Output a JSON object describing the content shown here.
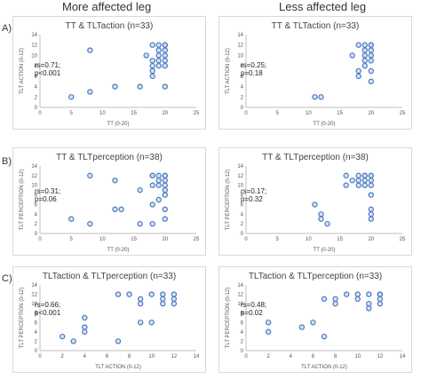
{
  "column_headers": [
    "More affected leg",
    "Less affected leg"
  ],
  "row_labels": [
    "A)",
    "B)",
    "C)"
  ],
  "chart_data": [
    {
      "type": "scatter",
      "row": 0,
      "col": 0,
      "title": "TT & TLTaction (n=33)",
      "xlabel": "TT (0-20)",
      "ylabel": "TLT ACTION (0-12)",
      "xlim": [
        0,
        25
      ],
      "ylim": [
        0,
        14
      ],
      "xticks": [
        0,
        5,
        10,
        15,
        20,
        25
      ],
      "yticks": [
        0,
        2,
        4,
        6,
        8,
        10,
        12,
        14
      ],
      "stat": [
        "rs=0.71;",
        "p<0.001"
      ],
      "x": [
        5,
        8,
        8,
        12,
        16,
        17,
        18,
        18,
        18,
        18,
        18,
        19,
        19,
        19,
        19,
        19,
        20,
        20,
        20,
        20,
        20,
        20,
        20
      ],
      "y": [
        2,
        3,
        11,
        4,
        4,
        10,
        12,
        9,
        8,
        7,
        6,
        12,
        11,
        10,
        9,
        8,
        12,
        12,
        11,
        10,
        9,
        8,
        4
      ]
    },
    {
      "type": "scatter",
      "row": 0,
      "col": 1,
      "title": "TT & TLTaction (n=33)",
      "xlabel": "TT (0-20)",
      "ylabel": "TLT ACTION (0-12)",
      "xlim": [
        0,
        25
      ],
      "ylim": [
        0,
        14
      ],
      "xticks": [
        0,
        5,
        10,
        15,
        20,
        25
      ],
      "yticks": [
        0,
        2,
        4,
        6,
        8,
        10,
        12,
        14
      ],
      "stat": [
        "rs=0.25;",
        "p=0.18"
      ],
      "x": [
        11,
        12,
        17,
        18,
        18,
        18,
        19,
        19,
        19,
        19,
        19,
        20,
        20,
        20,
        20,
        20,
        20,
        20
      ],
      "y": [
        2,
        2,
        10,
        12,
        7,
        6,
        12,
        11,
        10,
        9,
        8,
        12,
        12,
        11,
        10,
        9,
        7,
        5
      ]
    },
    {
      "type": "scatter",
      "row": 1,
      "col": 0,
      "title": "TT & TLTperception (n=38)",
      "xlabel": "TT (0-20)",
      "ylabel": "TLT PERCEPTION (0-12)",
      "xlim": [
        0,
        25
      ],
      "ylim": [
        0,
        14
      ],
      "xticks": [
        0,
        5,
        10,
        15,
        20,
        25
      ],
      "yticks": [
        0,
        2,
        4,
        6,
        8,
        10,
        12,
        14
      ],
      "stat": [
        "rs=0.31;",
        "p=0.06"
      ],
      "x": [
        5,
        8,
        8,
        12,
        12,
        13,
        16,
        16,
        18,
        18,
        18,
        18,
        18,
        19,
        19,
        19,
        19,
        20,
        20,
        20,
        20,
        20,
        20,
        20,
        20
      ],
      "y": [
        3,
        2,
        12,
        11,
        5,
        5,
        9,
        2,
        12,
        12,
        10,
        6,
        2,
        12,
        11,
        10,
        7,
        12,
        12,
        11,
        10,
        9,
        8,
        5,
        3
      ]
    },
    {
      "type": "scatter",
      "row": 1,
      "col": 1,
      "title": "TT & TLTperception (n=38)",
      "xlabel": "TT (0-20)",
      "ylabel": "TLT PERCEPTION (0-12)",
      "xlim": [
        0,
        25
      ],
      "ylim": [
        0,
        14
      ],
      "xticks": [
        0,
        5,
        10,
        15,
        20,
        25
      ],
      "yticks": [
        0,
        2,
        4,
        6,
        8,
        10,
        12,
        14
      ],
      "stat": [
        "rs=0.17;",
        "p=0.32"
      ],
      "x": [
        11,
        12,
        12,
        13,
        16,
        16,
        17,
        18,
        18,
        18,
        19,
        19,
        19,
        19,
        20,
        20,
        20,
        20,
        20,
        20,
        20,
        20
      ],
      "y": [
        6,
        4,
        3,
        2,
        12,
        10,
        11,
        12,
        11,
        10,
        12,
        12,
        11,
        10,
        12,
        12,
        11,
        10,
        8,
        5,
        4,
        3
      ]
    },
    {
      "type": "scatter",
      "row": 2,
      "col": 0,
      "title": "TLTaction & TLTperception (n=33)",
      "xlabel": "TLT ACTION (0-12)",
      "ylabel": "TLT PERCEPTION (0-12)",
      "xlim": [
        0,
        14
      ],
      "ylim": [
        0,
        14
      ],
      "xticks": [
        0,
        2,
        4,
        6,
        8,
        10,
        12,
        14
      ],
      "yticks": [
        0,
        2,
        4,
        6,
        8,
        10,
        12,
        14
      ],
      "stat": [
        "rs=0.66;",
        "p<0.001"
      ],
      "x": [
        2,
        3,
        4,
        4,
        4,
        7,
        7,
        8,
        9,
        9,
        9,
        10,
        10,
        11,
        11,
        11,
        12,
        12,
        12
      ],
      "y": [
        3,
        2,
        4,
        5,
        7,
        2,
        12,
        12,
        11,
        10,
        6,
        12,
        6,
        12,
        11,
        10,
        12,
        11,
        10
      ]
    },
    {
      "type": "scatter",
      "row": 2,
      "col": 1,
      "title": "TLTaction & TLTperception (n=33)",
      "xlabel": "TLT ACTION (0-12)",
      "ylabel": "TLT PERCEPTION (0-12)",
      "xlim": [
        0,
        14
      ],
      "ylim": [
        0,
        14
      ],
      "xticks": [
        0,
        2,
        4,
        6,
        8,
        10,
        12,
        14
      ],
      "yticks": [
        0,
        2,
        4,
        6,
        8,
        10,
        12,
        14
      ],
      "stat": [
        "rs=0.48;",
        "p=0.02"
      ],
      "x": [
        2,
        2,
        5,
        6,
        7,
        7,
        8,
        8,
        9,
        10,
        10,
        11,
        11,
        11,
        12,
        12,
        12,
        12
      ],
      "y": [
        6,
        4,
        5,
        6,
        3,
        11,
        10,
        11,
        12,
        12,
        11,
        12,
        10,
        9,
        12,
        12,
        11,
        10
      ]
    }
  ],
  "style": {
    "marker_stroke": "#4a78c2",
    "marker_fill": "#c9d8ee",
    "axis_color": "#bfbfbf",
    "tick_color": "#555555",
    "panel_border": "#d9d9d9"
  }
}
